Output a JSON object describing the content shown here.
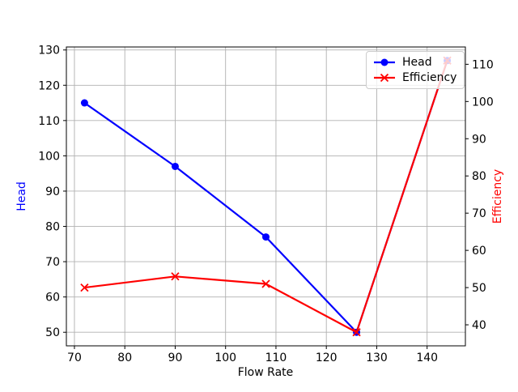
{
  "chart_data": {
    "type": "line",
    "xlabel": "Flow Rate",
    "ylabel_left": "Head",
    "ylabel_right": "Efficiency",
    "x": [
      72,
      90,
      108,
      126,
      144
    ],
    "series": [
      {
        "name": "Head",
        "axis": "left",
        "color": "#0000ff",
        "marker": "circle",
        "values": [
          115,
          97,
          77,
          50,
          127
        ]
      },
      {
        "name": "Efficiency",
        "axis": "right",
        "color": "#ff0000",
        "marker": "x",
        "values": [
          50,
          53,
          51,
          38,
          111
        ]
      }
    ],
    "xlim": [
      68.4,
      147.6
    ],
    "ylim_left": [
      46.15,
      130.85
    ],
    "ylim_right": [
      34.35,
      114.65
    ],
    "xticks": [
      70,
      80,
      90,
      100,
      110,
      120,
      130,
      140
    ],
    "yticks_left": [
      50,
      60,
      70,
      80,
      90,
      100,
      110,
      120,
      130
    ],
    "yticks_right": [
      40,
      50,
      60,
      70,
      80,
      90,
      100,
      110
    ],
    "grid": true,
    "legend": {
      "position": "upper-right",
      "items": [
        "Head",
        "Efficiency"
      ]
    },
    "colors": {
      "grid": "#b0b0b0",
      "spine": "#000000",
      "tick_label": "#000000",
      "background": "#ffffff",
      "legend_border": "#cccccc",
      "axis_label_left": "#0000ff",
      "axis_label_right": "#ff0000",
      "xlabel_color": "#000000"
    }
  }
}
